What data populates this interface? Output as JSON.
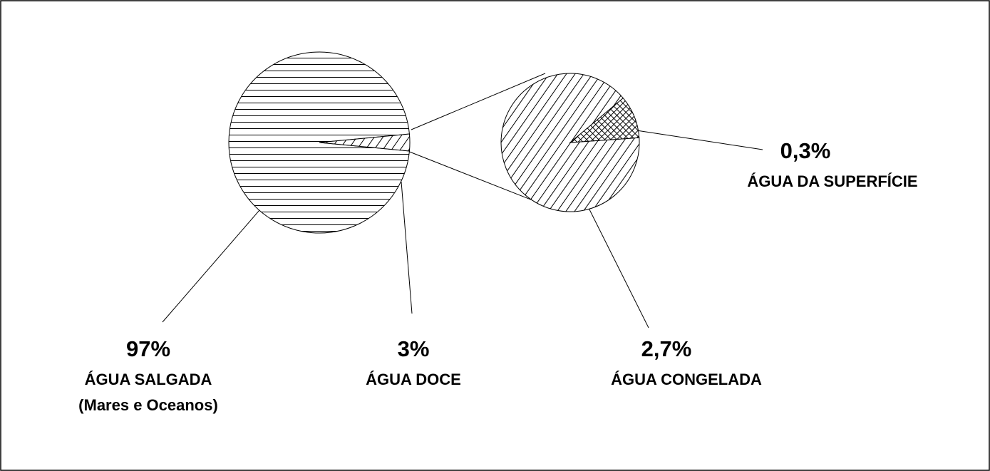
{
  "chart_data": [
    {
      "type": "pie",
      "categories": [
        "ÁGUA SALGADA",
        "ÁGUA DOCE"
      ],
      "values": [
        97,
        3
      ],
      "value_labels": [
        "97%",
        "3%"
      ],
      "annotations": [
        "(Mares e Oceanos)"
      ],
      "patterns": [
        "horizontal",
        "diagonal"
      ]
    },
    {
      "type": "pie",
      "categories": [
        "ÁGUA CONGELADA",
        "ÁGUA DA SUPERFÍCIE"
      ],
      "values": [
        2.7,
        0.3
      ],
      "value_labels": [
        "2,7%",
        "0,3%"
      ],
      "patterns": [
        "diagonal",
        "crosshatch"
      ]
    }
  ]
}
